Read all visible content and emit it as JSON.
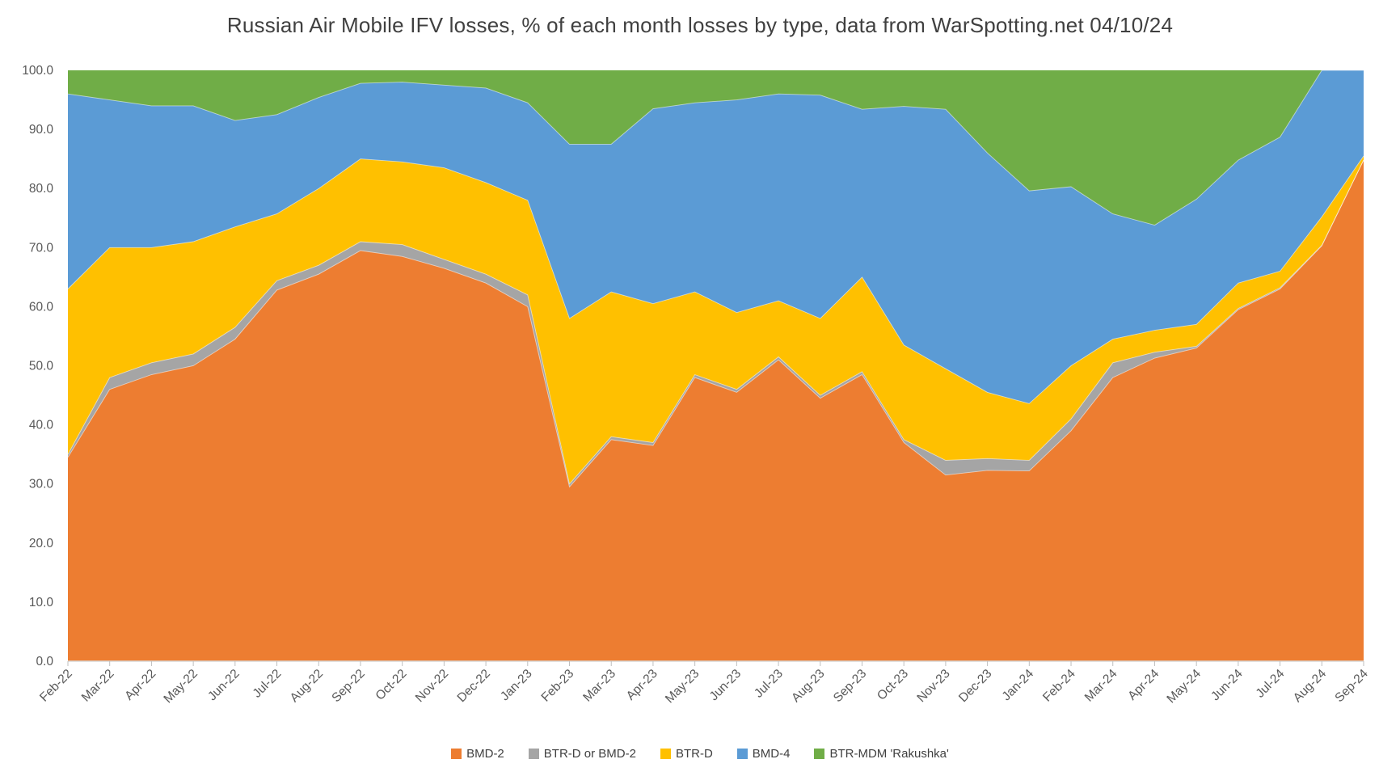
{
  "title": "Russian Air Mobile IFV losses, % of each month losses by type, data from WarSpotting.net 04/10/24",
  "axis": {
    "y_tick_labels": [
      "0.0",
      "10.0",
      "20.0",
      "30.0",
      "40.0",
      "50.0",
      "60.0",
      "70.0",
      "80.0",
      "90.0",
      "100.0"
    ],
    "y_min": 0,
    "y_max": 100,
    "y_step": 10,
    "tick_color": "#bfbfbf",
    "axis_line_color": "#d9d9d9",
    "label_color": "#595959"
  },
  "legend": {
    "position": "bottom",
    "items": [
      "BMD-2",
      "BTR-D or BMD-2",
      "BTR-D",
      "BMD-4",
      "BTR-MDM 'Rakushka'"
    ]
  },
  "chart_data": {
    "type": "area",
    "stacked": true,
    "stacked_to_100_percent": true,
    "grid": false,
    "legend_position": "bottom",
    "title": "Russian Air Mobile IFV losses, % of each month losses by type, data from WarSpotting.net 04/10/24",
    "xlabel": "",
    "ylabel": "",
    "ylim": [
      0,
      100
    ],
    "x": [
      "Feb-22",
      "Mar-22",
      "Apr-22",
      "May-22",
      "Jun-22",
      "Jul-22",
      "Aug-22",
      "Sep-22",
      "Oct-22",
      "Nov-22",
      "Dec-22",
      "Jan-23",
      "Feb-23",
      "Mar-23",
      "Apr-23",
      "May-23",
      "Jun-23",
      "Jul-23",
      "Aug-23",
      "Sep-23",
      "Oct-23",
      "Nov-23",
      "Dec-23",
      "Jan-24",
      "Feb-24",
      "Mar-24",
      "Apr-24",
      "May-24",
      "Jun-24",
      "Jul-24",
      "Aug-24",
      "Sep-24"
    ],
    "series": [
      {
        "name": "BMD-2",
        "color": "#ED7D31",
        "values": [
          34.5,
          46,
          48.5,
          50,
          54.5,
          62.8,
          65.5,
          69.5,
          68.5,
          66.5,
          64,
          60,
          29.5,
          37.5,
          36.5,
          48,
          45.5,
          51,
          44.5,
          48.5,
          37,
          31.5,
          32.3,
          32.2,
          39,
          48,
          51.3,
          53,
          59.5,
          63,
          70.3,
          84.8
        ]
      },
      {
        "name": "BTR-D or BMD-2",
        "color": "#A5A5A5",
        "values": [
          0.5,
          2,
          2,
          2,
          2,
          1.6,
          1.5,
          1.5,
          2,
          1.5,
          1.5,
          2,
          0.5,
          0.5,
          0.5,
          0.5,
          0.5,
          0.5,
          0.5,
          0.5,
          0.5,
          2.5,
          2,
          1.8,
          2,
          2.5,
          1,
          0.3,
          0.2,
          0.2,
          0.1,
          0
        ]
      },
      {
        "name": "BTR-D",
        "color": "#FFC000",
        "values": [
          28,
          22,
          19.5,
          19,
          17,
          11.3,
          13,
          14,
          14,
          15.5,
          15.5,
          16,
          28,
          24.5,
          23.5,
          14,
          13,
          9.5,
          13,
          16,
          16,
          15.5,
          11.2,
          9.6,
          9,
          4,
          3.7,
          3.7,
          4.3,
          2.8,
          4.8,
          0.7
        ]
      },
      {
        "name": "BMD-4",
        "color": "#5B9BD5",
        "values": [
          33,
          25,
          24,
          23,
          18,
          16.8,
          15.4,
          12.8,
          13.5,
          14,
          16,
          16.5,
          29.5,
          25,
          33,
          32,
          36,
          35,
          37.8,
          28.4,
          40.4,
          43.9,
          40.5,
          36,
          30.3,
          21.2,
          17.8,
          21.2,
          20.8,
          22.7,
          24.8,
          14.5
        ]
      },
      {
        "name": "BTR-MDM 'Rakushka'",
        "color": "#70AD47",
        "values": [
          4,
          5,
          6,
          6,
          8.5,
          7.5,
          4.6,
          2.2,
          2,
          2.5,
          3,
          5.5,
          12.5,
          12.5,
          6.5,
          5.5,
          5,
          4,
          4.2,
          6.6,
          6.1,
          6.6,
          14,
          20.4,
          19.7,
          24.3,
          26.2,
          21.8,
          15.2,
          11.3,
          0,
          0
        ]
      }
    ]
  }
}
